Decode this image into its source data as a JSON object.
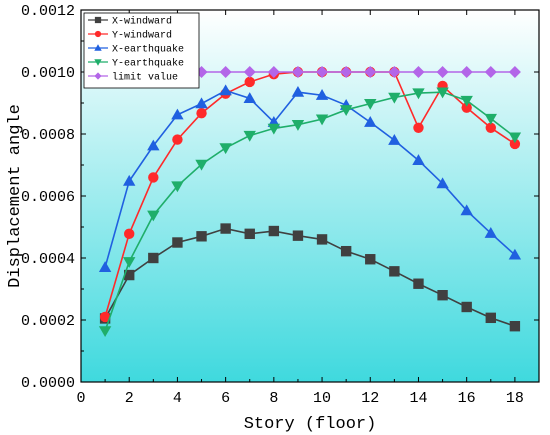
{
  "chart_data": {
    "type": "line",
    "xlabel": "Story (floor)",
    "ylabel": "Displacement angle",
    "xlim": [
      0,
      19
    ],
    "ylim": [
      0,
      0.0012
    ],
    "grid": false,
    "legend_position": "top-left",
    "x": [
      1,
      2,
      3,
      4,
      5,
      6,
      7,
      8,
      9,
      10,
      11,
      12,
      13,
      14,
      15,
      16,
      17,
      18
    ],
    "x_ticks": [
      "0",
      "2",
      "4",
      "6",
      "8",
      "10",
      "12",
      "14",
      "16",
      "18"
    ],
    "y_ticks": [
      "0.0000",
      "0.0002",
      "0.0004",
      "0.0006",
      "0.0008",
      "0.0010",
      "0.0012"
    ],
    "background_gradient": [
      "#ffffff",
      "#3fd9de"
    ],
    "series": [
      {
        "name": "X-windward",
        "color": "#404040",
        "marker": "square",
        "values": [
          0.000205,
          0.000345,
          0.0004,
          0.00045,
          0.00047,
          0.000495,
          0.000478,
          0.000487,
          0.000472,
          0.00046,
          0.000422,
          0.000396,
          0.000357,
          0.000317,
          0.00028,
          0.000242,
          0.000207,
          0.00018
        ]
      },
      {
        "name": "Y-windward",
        "color": "#ff2a2a",
        "marker": "circle",
        "values": [
          0.00021,
          0.000478,
          0.00066,
          0.000782,
          0.000867,
          0.00093,
          0.000968,
          0.000993,
          0.001,
          0.001,
          0.001,
          0.001,
          0.001,
          0.00082,
          0.000955,
          0.000885,
          0.00082,
          0.000768
        ]
      },
      {
        "name": "X-earthquake",
        "color": "#2060e0",
        "marker": "triangle-up",
        "values": [
          0.00037,
          0.000648,
          0.000762,
          0.000862,
          0.000898,
          0.00094,
          0.000915,
          0.000838,
          0.000935,
          0.000925,
          0.000893,
          0.000838,
          0.00078,
          0.000715,
          0.00064,
          0.000553,
          0.00048,
          0.00041
        ]
      },
      {
        "name": "Y-earthquake",
        "color": "#1fae6a",
        "marker": "triangle-down",
        "values": [
          0.000165,
          0.000388,
          0.000538,
          0.000632,
          0.000702,
          0.000755,
          0.000795,
          0.000818,
          0.00083,
          0.000848,
          0.000878,
          0.000898,
          0.000918,
          0.000932,
          0.000935,
          0.000908,
          0.00085,
          0.00079
        ]
      },
      {
        "name": "limit value",
        "color": "#b366e8",
        "marker": "diamond",
        "values": [
          0.001,
          0.001,
          0.001,
          0.001,
          0.001,
          0.001,
          0.001,
          0.001,
          0.001,
          0.001,
          0.001,
          0.001,
          0.001,
          0.001,
          0.001,
          0.001,
          0.001,
          0.001
        ]
      }
    ]
  }
}
